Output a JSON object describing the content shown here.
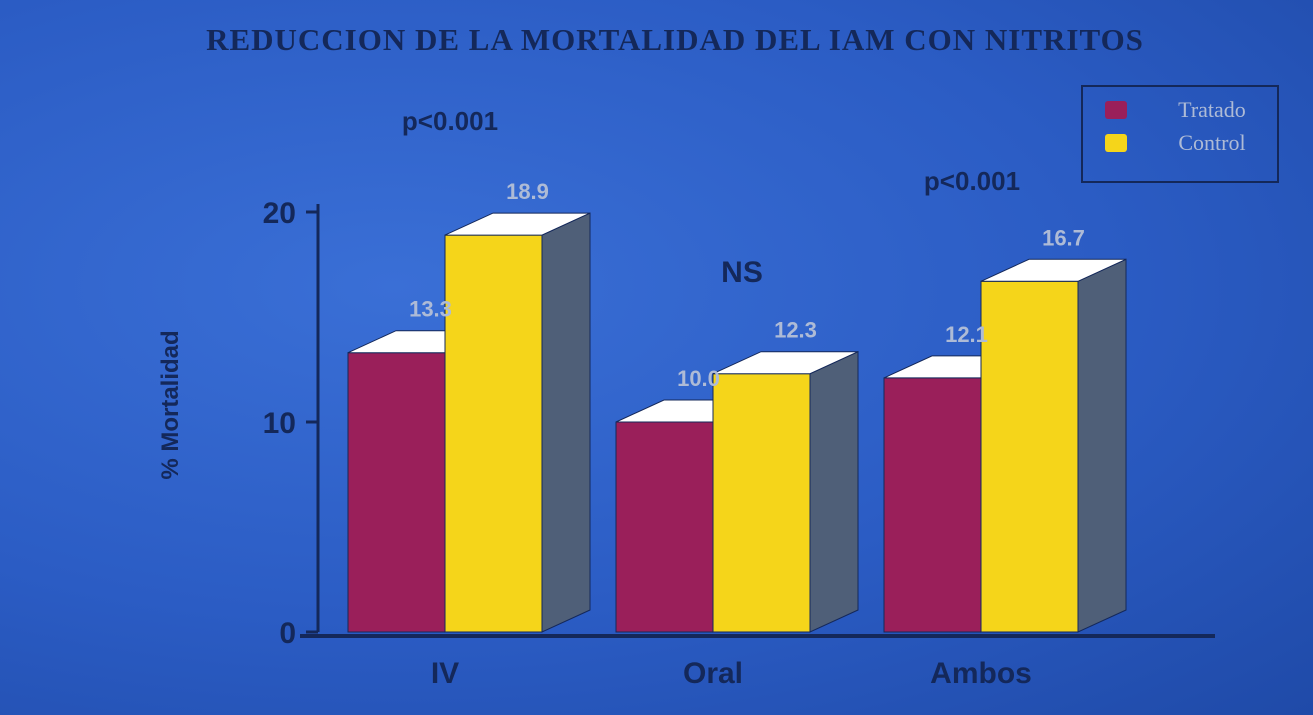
{
  "colors": {
    "background": "#2b5cc4",
    "tratado": "#9a1f5a",
    "control": "#f5d51a",
    "side": "#4f5f78",
    "top": "#ffffff",
    "text_dark": "#14285a",
    "text_light": "#aebbd6"
  },
  "chart_data": {
    "type": "bar",
    "title": "REDUCCION DE LA MORTALIDAD DEL IAM CON NITRITOS",
    "ylabel": "% Mortalidad",
    "xlabel": "",
    "ylim": [
      0,
      20
    ],
    "yticks": [
      "0",
      "10",
      "20"
    ],
    "categories": [
      "IV",
      "Oral",
      "Ambos"
    ],
    "series": [
      {
        "name": "Tratado",
        "values": [
          13.3,
          10.0,
          12.1
        ],
        "labels": [
          "13.3",
          "10.0",
          "12.1"
        ]
      },
      {
        "name": "Control",
        "values": [
          18.9,
          12.3,
          16.7
        ],
        "labels": [
          "18.9",
          "12.3",
          "16.7"
        ]
      }
    ],
    "annotations": [
      "p<0.001",
      "NS",
      "p<0.001"
    ],
    "legend_position": "top-right",
    "grid": false
  }
}
